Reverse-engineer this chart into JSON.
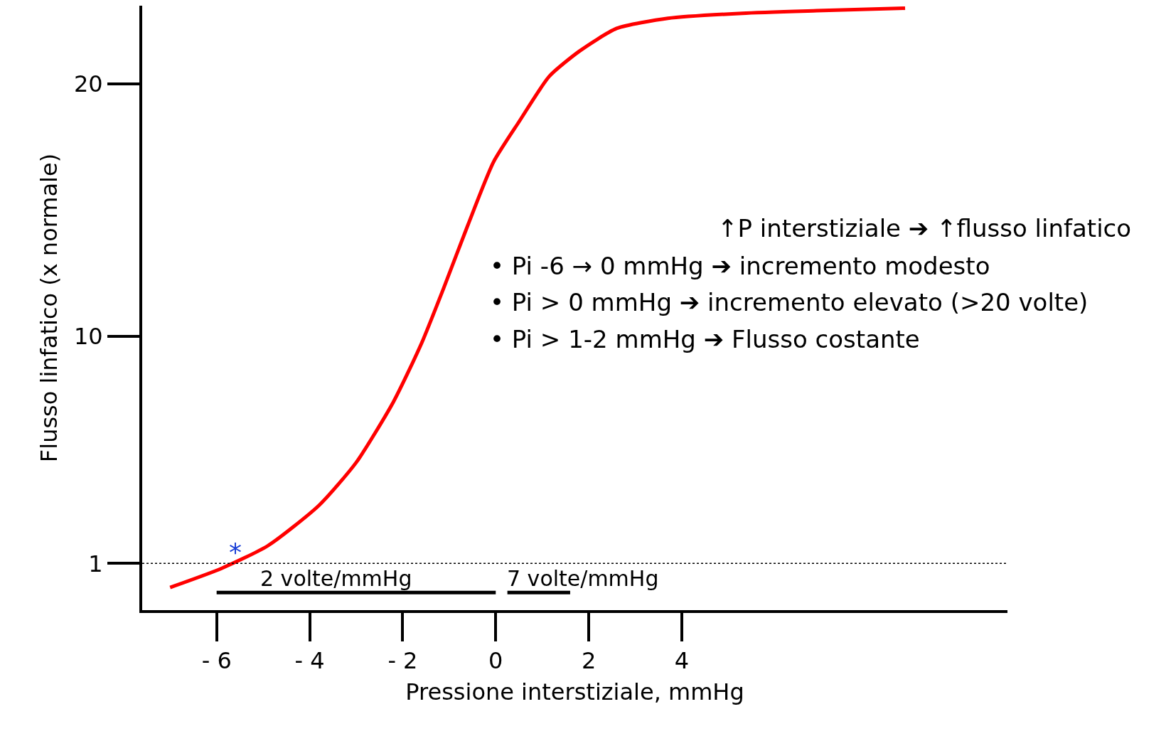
{
  "chart_data": {
    "type": "line",
    "xlabel": "Pressione interstiziale, mmHg",
    "ylabel": "Flusso linfatico (x normale)",
    "xlim": [
      -7.6,
      11
    ],
    "ylim": [
      -0.85,
      23.1
    ],
    "xticks": [
      {
        "value": -6,
        "label": "- 6"
      },
      {
        "value": -4,
        "label": "- 4"
      },
      {
        "value": -2,
        "label": "- 2"
      },
      0,
      2,
      4
    ],
    "yticks": [
      1,
      10,
      20
    ],
    "legend": false,
    "marker": "none",
    "line_style": "solid",
    "series": [
      {
        "color": "#ff0000",
        "x": [
          -7.0,
          -5.9,
          -4.9,
          -3.8,
          -3.0,
          -2.2,
          -1.6,
          -1.1,
          -0.6,
          -0.05,
          0.5,
          1.15,
          1.8,
          2.6,
          3.7,
          5.3,
          6.9,
          8.8
        ],
        "values": [
          0.05,
          0.8,
          1.7,
          3.3,
          5.0,
          7.4,
          9.7,
          12.0,
          14.4,
          16.9,
          18.5,
          20.3,
          21.3,
          22.2,
          22.6,
          22.8,
          22.9,
          23.0
        ]
      },
      {
        "color": "#000000",
        "x": [
          -6,
          0
        ],
        "values": [
          -0.15,
          -0.15
        ]
      },
      {
        "color": "#000000",
        "x": [
          0.25,
          1.6
        ],
        "values": [
          -0.15,
          -0.15
        ]
      }
    ],
    "ref_lines": [
      {
        "axis": "y",
        "value": 1,
        "color": "#000000",
        "line_style": "dotted"
      }
    ],
    "annotations": [
      "*",
      "2 volte/mmHg",
      "7 volte/mmHg",
      "↑P interstiziale ➔ ↑flusso linfatico",
      "• Pi -6 → 0 mmHg ➔ incremento modesto",
      "• Pi > 0 mmHg ➔ incremento elevato (>20 volte)",
      "• Pi > 1-2 mmHg ➔ Flusso costante"
    ]
  }
}
